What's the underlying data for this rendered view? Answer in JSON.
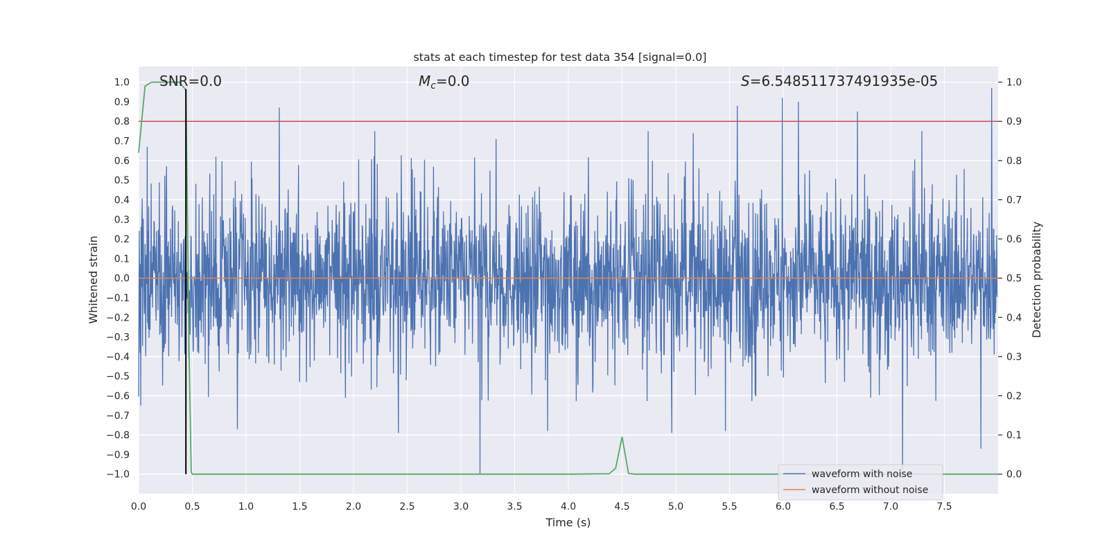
{
  "chart_data": {
    "type": "line",
    "title": "stats at each timestep for test data 354 [signal=0.0]",
    "xlabel": "Time (s)",
    "ylabel": "Whitened strain",
    "y2label": "Detection probability",
    "xlim": [
      0.0,
      8.0
    ],
    "ylim": [
      -1.1,
      1.08
    ],
    "y2lim": [
      -0.05,
      1.04
    ],
    "xticks": [
      0.0,
      0.5,
      1.0,
      1.5,
      2.0,
      2.5,
      3.0,
      3.5,
      4.0,
      4.5,
      5.0,
      5.5,
      6.0,
      6.5,
      7.0,
      7.5
    ],
    "xtick_labels": [
      "0.0",
      "0.5",
      "1.0",
      "1.5",
      "2.0",
      "2.5",
      "3.0",
      "3.5",
      "4.0",
      "4.5",
      "5.0",
      "5.5",
      "6.0",
      "6.5",
      "7.0",
      "7.5"
    ],
    "yticks": [
      1.0,
      0.9,
      0.8,
      0.7,
      0.6,
      0.5,
      0.4,
      0.3,
      0.2,
      0.1,
      0.0,
      -0.1,
      -0.2,
      -0.3,
      -0.4,
      -0.5,
      -0.6,
      -0.7,
      -0.8,
      -0.9,
      -1.0
    ],
    "ytick_labels": [
      "1.0",
      "0.9",
      "0.8",
      "0.7",
      "0.6",
      "0.5",
      "0.4",
      "0.3",
      "0.2",
      "0.1",
      "0.0",
      "−0.1",
      "−0.2",
      "−0.3",
      "−0.4",
      "−0.5",
      "−0.6",
      "−0.7",
      "−0.8",
      "−0.9",
      "−1.0"
    ],
    "y2ticks": [
      1.0,
      0.9,
      0.8,
      0.7,
      0.6,
      0.5,
      0.4,
      0.3,
      0.2,
      0.1,
      0.0
    ],
    "y2tick_labels": [
      "1.0",
      "0.9",
      "0.8",
      "0.7",
      "0.6",
      "0.5",
      "0.4",
      "0.3",
      "0.2",
      "0.1",
      "0.0"
    ],
    "annotations": {
      "snr": "SNR=0.0",
      "mc_symbol": "M",
      "mc_sub": "c",
      "mc_value": "=0.0",
      "s_symbol": "S",
      "s_value": "=6.548511737491935e-05"
    },
    "legend": {
      "position": "lower-right",
      "entries": [
        "waveform with noise",
        "waveform without noise"
      ]
    },
    "colors": {
      "noise": "#4c72b0",
      "clean": "#dd8452",
      "probability": "#55a868",
      "threshold": "#c44e52",
      "marker": "#000000",
      "background": "#eaeaf2",
      "grid": "#ffffff"
    },
    "threshold_line_right_axis": 0.9,
    "marker_line_time": 0.44,
    "series": [
      {
        "name": "waveform with noise",
        "axis": "left",
        "kind": "dense noise trace",
        "typical_envelope": [
          -0.42,
          0.39
        ],
        "peaks": [
          {
            "x": 0.08,
            "y": 0.67
          },
          {
            "x": 0.26,
            "y": 0.57
          },
          {
            "x": 0.72,
            "y": 0.62
          },
          {
            "x": 1.31,
            "y": 0.87
          },
          {
            "x": 2.2,
            "y": 0.75
          },
          {
            "x": 3.33,
            "y": 0.71
          },
          {
            "x": 4.75,
            "y": 0.75
          },
          {
            "x": 5.17,
            "y": 0.74
          },
          {
            "x": 5.58,
            "y": 0.88
          },
          {
            "x": 6.0,
            "y": 0.92
          },
          {
            "x": 6.15,
            "y": 0.9
          },
          {
            "x": 6.7,
            "y": 0.85
          },
          {
            "x": 7.3,
            "y": 0.75
          },
          {
            "x": 7.95,
            "y": 0.97
          }
        ],
        "troughs": [
          {
            "x": 0.02,
            "y": -0.65
          },
          {
            "x": 0.92,
            "y": -0.77
          },
          {
            "x": 2.42,
            "y": -0.79
          },
          {
            "x": 3.18,
            "y": -1.0
          },
          {
            "x": 3.81,
            "y": -0.78
          },
          {
            "x": 4.97,
            "y": -0.79
          },
          {
            "x": 5.47,
            "y": -0.78
          },
          {
            "x": 7.12,
            "y": -0.98
          },
          {
            "x": 7.85,
            "y": -0.87
          }
        ]
      },
      {
        "name": "waveform without noise",
        "axis": "left",
        "x": [
          0.0,
          8.0
        ],
        "y": [
          0.0,
          0.0
        ]
      },
      {
        "name": "detection probability",
        "axis": "right",
        "x": [
          0.0,
          0.06,
          0.12,
          0.2,
          0.3,
          0.38,
          0.44,
          0.47,
          0.49,
          0.5,
          0.56,
          1.0,
          2.0,
          3.0,
          4.0,
          4.38,
          4.44,
          4.5,
          4.56,
          4.62,
          5.0,
          6.0,
          7.0,
          8.0
        ],
        "y": [
          0.82,
          0.99,
          1.0,
          1.0,
          1.0,
          1.0,
          0.98,
          0.3,
          0.005,
          0.0,
          0.0,
          0.0,
          0.0,
          0.0,
          0.0,
          0.001,
          0.015,
          0.095,
          0.002,
          0.0,
          0.0,
          0.0,
          0.0,
          0.0
        ]
      }
    ]
  }
}
